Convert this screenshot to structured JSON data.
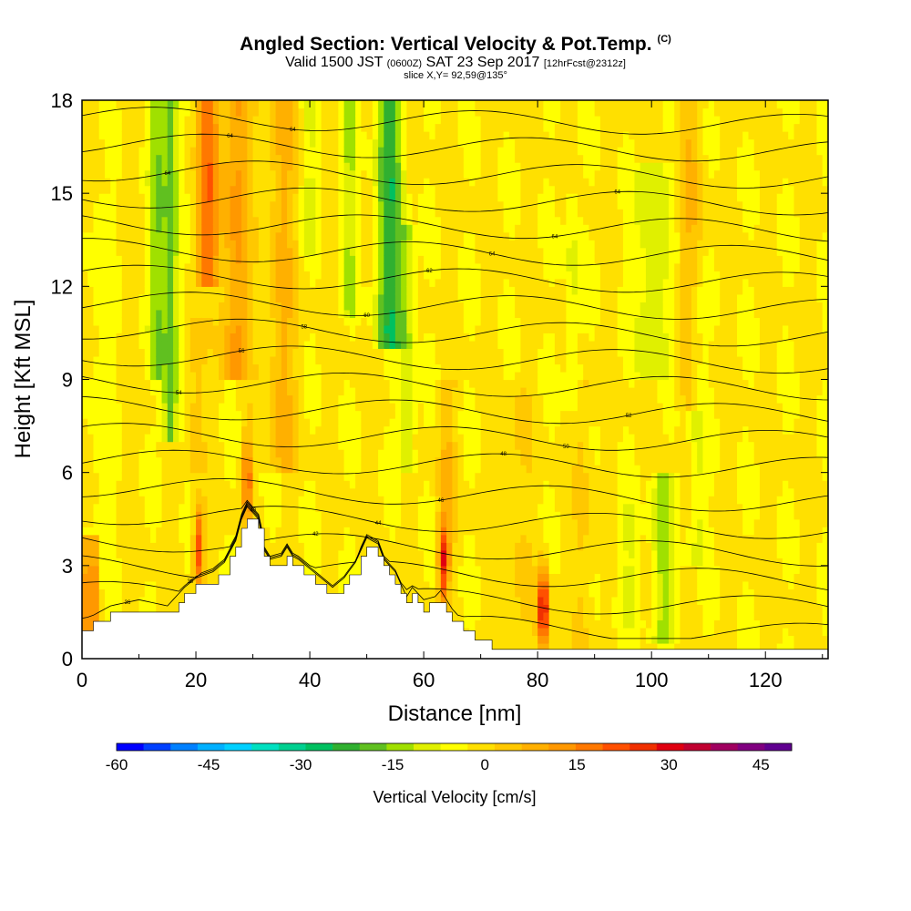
{
  "title": {
    "main": "Angled Section: Vertical Velocity & Pot.Temp.",
    "main_tag": "(C)",
    "line2_a": "Valid 1500 JST",
    "line2_b": "(0600Z)",
    "line2_c": "SAT 23 Sep 2017",
    "line2_d": "[12hrFcst@2312z]",
    "line3": "slice X,Y= 92,59@135°"
  },
  "chart_data": {
    "type": "heatmap",
    "xlabel": "Distance [nm]",
    "ylabel": "Height [Kft MSL]",
    "xlim": [
      0,
      131
    ],
    "ylim": [
      0,
      18
    ],
    "xticks": [
      0,
      20,
      40,
      60,
      80,
      100,
      120
    ],
    "yticks": [
      0,
      3,
      6,
      9,
      12,
      15,
      18
    ],
    "colorbar": {
      "label": "Vertical Velocity [cm/s]",
      "range": [
        -60,
        50
      ],
      "step": 5,
      "ticks": [
        -60,
        -45,
        -30,
        -15,
        0,
        15,
        30,
        45
      ],
      "colors": [
        "#0000ff",
        "#0040ff",
        "#0080ff",
        "#00b0ff",
        "#00d0ff",
        "#00e0c0",
        "#00d090",
        "#00c060",
        "#30b030",
        "#60c020",
        "#a0e000",
        "#e0f000",
        "#ffff00",
        "#ffe000",
        "#ffc800",
        "#ffb000",
        "#ff9800",
        "#ff7800",
        "#ff5000",
        "#f03000",
        "#e00010",
        "#c00030",
        "#a00060",
        "#800080",
        "#600090"
      ]
    },
    "series": [
      {
        "type": "terrain",
        "x": [
          0,
          1,
          5,
          10,
          15,
          18,
          20,
          23,
          25,
          27,
          28,
          29,
          31,
          32,
          33,
          35,
          36,
          37,
          38,
          40,
          42,
          44,
          46,
          48,
          49,
          50,
          52,
          53,
          55,
          57,
          58,
          60,
          62,
          63,
          65,
          67,
          70,
          72,
          75,
          80,
          90,
          100,
          110,
          120,
          131
        ],
        "y": [
          0.8,
          1.0,
          1.4,
          1.6,
          1.4,
          2.0,
          2.3,
          2.5,
          2.8,
          3.5,
          4.2,
          4.6,
          4.2,
          3.2,
          2.9,
          3.0,
          3.3,
          3.0,
          2.9,
          2.6,
          2.3,
          2.0,
          2.3,
          2.8,
          3.2,
          3.6,
          3.4,
          2.9,
          2.5,
          1.7,
          2.0,
          1.6,
          1.7,
          1.9,
          1.3,
          0.9,
          0.5,
          0.4,
          0.35,
          0.35,
          0.35,
          0.35,
          0.35,
          0.35,
          0.35
        ]
      },
      {
        "type": "updraft",
        "x": [
          20.5,
          29,
          63.5,
          81
        ],
        "peak_cm_s": [
          30,
          25,
          30,
          40
        ]
      },
      {
        "type": "isentrope_labels",
        "values": [
          36,
          38,
          40,
          42,
          44,
          46,
          48,
          50,
          52,
          54,
          56,
          58,
          60,
          62,
          64
        ]
      }
    ]
  }
}
